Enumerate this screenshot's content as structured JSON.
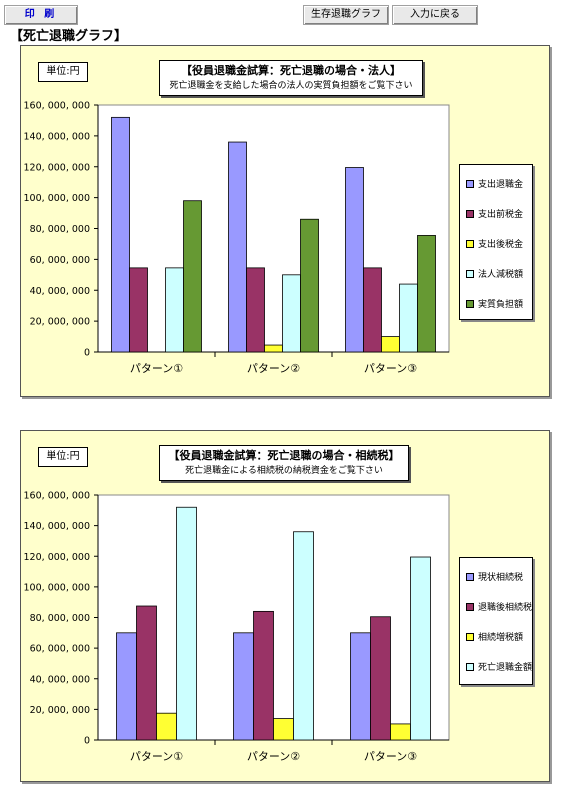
{
  "toolbar": {
    "print_label": "印 刷",
    "graph_label": "生存退職グラフ",
    "back_label": "入力に戻る"
  },
  "page_title": "【死亡退職グラフ】",
  "colors": {
    "purple": "#9999ff",
    "maroon": "#993366",
    "yellow": "#ffff33",
    "lightblue": "#ccffff",
    "green": "#669933",
    "panel_bg": "#ffffcc"
  },
  "chart_data": [
    {
      "type": "bar",
      "unit_label": "単位:円",
      "title": "【役員退職金試算：死亡退職の場合・法人】",
      "subtitle": "死亡退職金を支給した場合の法人の実質負担額をご覧下さい",
      "categories": [
        "パターン①",
        "パターン②",
        "パターン③"
      ],
      "series": [
        {
          "name": "支出退職金",
          "color": "#9999ff",
          "values": [
            152000000,
            136000000,
            119500000
          ]
        },
        {
          "name": "支出前税金",
          "color": "#993366",
          "values": [
            54500000,
            54500000,
            54500000
          ]
        },
        {
          "name": "支出後税金",
          "color": "#ffff33",
          "values": [
            0,
            4500000,
            10000000
          ]
        },
        {
          "name": "法人減税額",
          "color": "#ccffff",
          "values": [
            54500000,
            50000000,
            44000000
          ]
        },
        {
          "name": "実質負担額",
          "color": "#669933",
          "values": [
            98000000,
            86000000,
            75500000
          ]
        }
      ],
      "yticks": [
        "0",
        "20, 000, 000",
        "40, 000, 000",
        "60, 000, 000",
        "80, 000, 000",
        "100, 000, 000",
        "120, 000, 000",
        "140, 000, 000",
        "160, 000, 000"
      ],
      "ylim": [
        0,
        160000000
      ],
      "grid": false,
      "legend": "right"
    },
    {
      "type": "bar",
      "unit_label": "単位:円",
      "title": "【役員退職金試算：死亡退職の場合・相続税】",
      "subtitle": "死亡退職金による相続税の納税資金をご覧下さい",
      "categories": [
        "パターン①",
        "パターン②",
        "パターン③"
      ],
      "series": [
        {
          "name": "現状相続税",
          "color": "#9999ff",
          "values": [
            70000000,
            70000000,
            70000000
          ]
        },
        {
          "name": "退職後相続税",
          "color": "#993366",
          "values": [
            87500000,
            84000000,
            80500000
          ]
        },
        {
          "name": "相続増税額",
          "color": "#ffff33",
          "values": [
            17500000,
            14000000,
            10500000
          ]
        },
        {
          "name": "死亡退職金額",
          "color": "#ccffff",
          "values": [
            152000000,
            136000000,
            119500000
          ]
        }
      ],
      "yticks": [
        "0",
        "20, 000, 000",
        "40, 000, 000",
        "60, 000, 000",
        "80, 000, 000",
        "100, 000, 000",
        "120, 000, 000",
        "140, 000, 000",
        "160, 000, 000"
      ],
      "ylim": [
        0,
        160000000
      ],
      "grid": false,
      "legend": "right"
    }
  ]
}
